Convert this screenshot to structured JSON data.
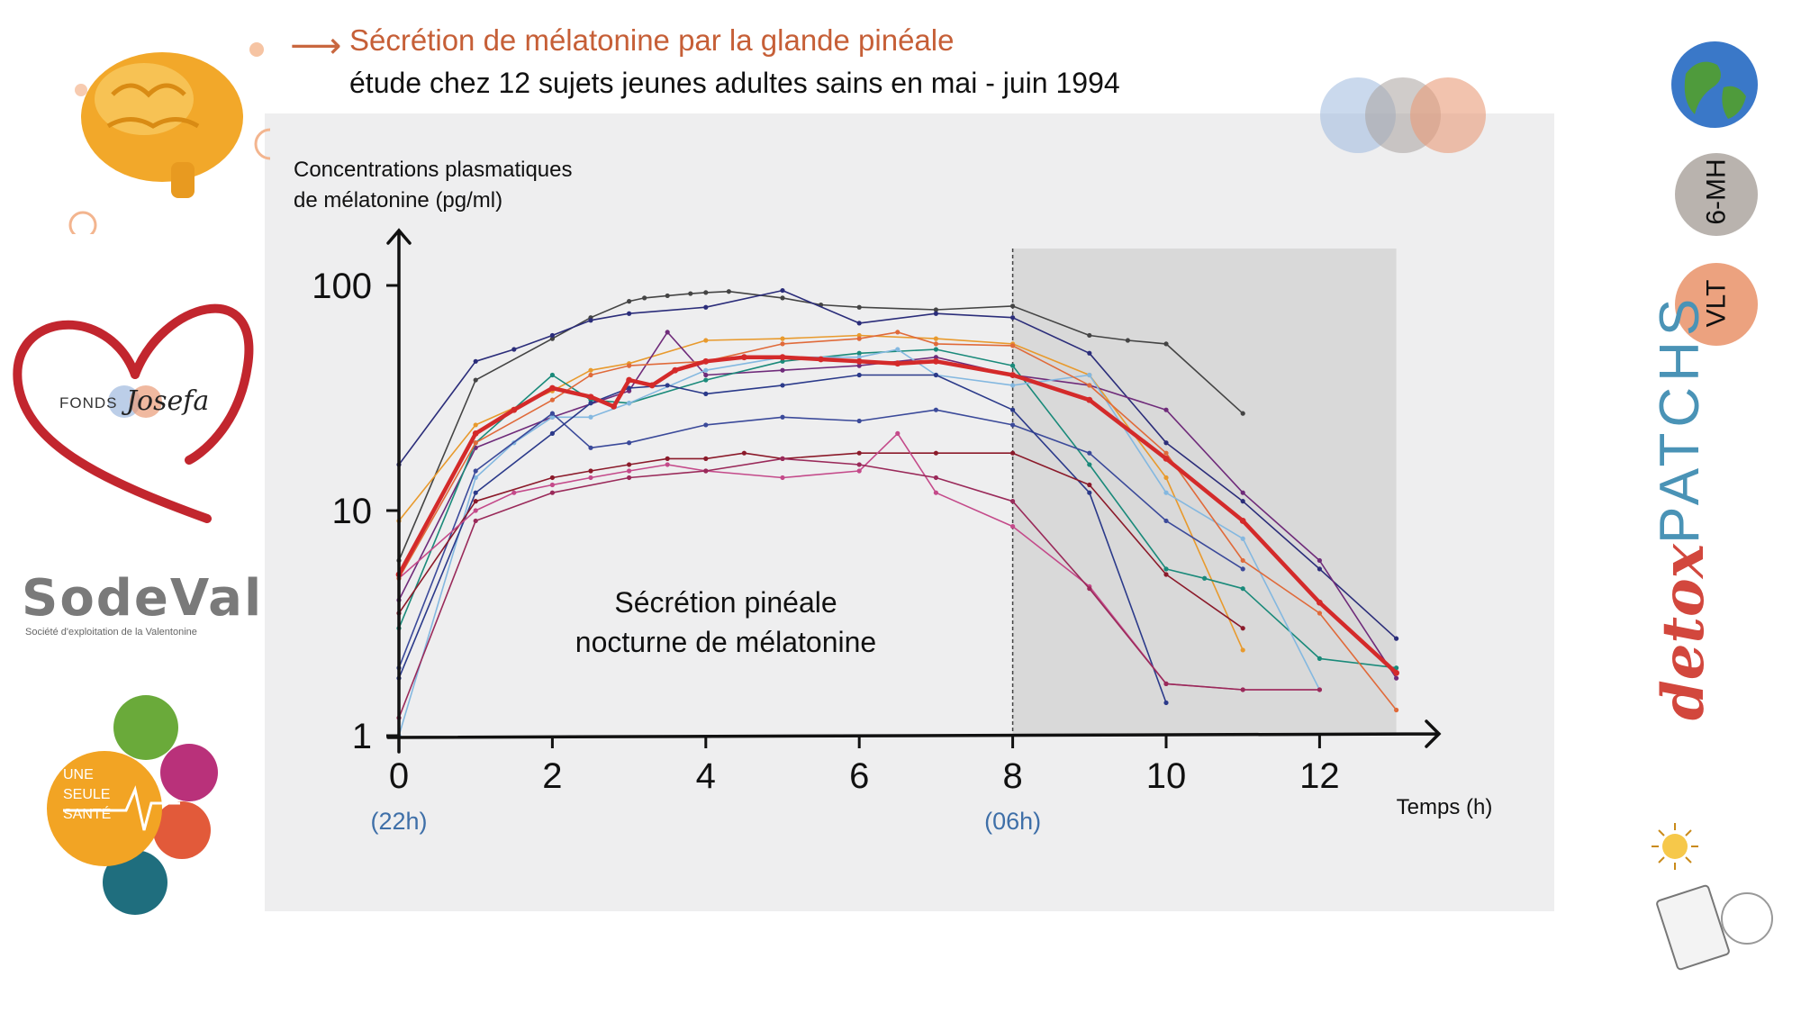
{
  "header": {
    "arrow": "⟶",
    "title": "Sécrétion de mélatonine par la glande pinéale",
    "subtitle": "étude chez 12 sujets jeunes adultes sains en mai - juin 1994"
  },
  "sidebar_left": {
    "fonds_label": "FONDS",
    "fonds_script": "Josefa",
    "sodeval_label": "SodeVal",
    "sodeval_sub": "Société d'exploitation de la Valentonine",
    "one_health": [
      "UNE",
      "SEULE",
      "SANTÉ"
    ]
  },
  "sidebar_right": {
    "badge_6mh": "6-MH",
    "badge_vlt": "VLT",
    "detox": "detox",
    "patchs": "PATCHS"
  },
  "colors": {
    "title": "#c65f37",
    "mean_line": "#d42a2a",
    "shade": "#d9d9d9",
    "hour_label": "#3e6fa8"
  },
  "chart_data": {
    "type": "line",
    "ylabel_lines": [
      "Concentrations plasmatiques",
      "de mélatonine (pg/ml)"
    ],
    "xlabel": "Temps (h)",
    "y_scale": "log",
    "ylim": [
      1,
      130
    ],
    "xlim": [
      0,
      13.5
    ],
    "x_ticks": [
      0,
      2,
      4,
      6,
      8,
      10,
      12
    ],
    "y_ticks": [
      1,
      10,
      100
    ],
    "hour_labels": [
      {
        "x": 0,
        "text": "(22h)"
      },
      {
        "x": 8,
        "text": "(06h)"
      }
    ],
    "shaded_region": [
      8,
      13
    ],
    "annotation_lines": [
      "Sécrétion pinéale",
      "nocturne de mélatonine"
    ],
    "series": [
      {
        "color": "#444444",
        "x": [
          0,
          1,
          2,
          2.5,
          3,
          3.2,
          3.5,
          3.8,
          4,
          4.3,
          5,
          5.5,
          6,
          7,
          8,
          9,
          9.5,
          10,
          11
        ],
        "y": [
          6,
          38,
          58,
          72,
          85,
          88,
          90,
          92,
          93,
          94,
          88,
          82,
          80,
          78,
          81,
          60,
          57,
          55,
          27
        ]
      },
      {
        "color": "#2b2d7a",
        "x": [
          0,
          1,
          1.5,
          2,
          2.5,
          3,
          4,
          5,
          6,
          7,
          8,
          9,
          10,
          11,
          12,
          13
        ],
        "y": [
          16,
          46,
          52,
          60,
          70,
          75,
          80,
          95,
          68,
          75,
          72,
          50,
          20,
          11,
          5.5,
          2.7
        ]
      },
      {
        "color": "#e89a2d",
        "x": [
          0,
          1,
          2,
          2.5,
          3,
          4,
          5,
          6,
          7,
          8,
          9,
          10,
          11
        ],
        "y": [
          9,
          24,
          34,
          42,
          45,
          57,
          58,
          60,
          58,
          55,
          40,
          14,
          2.4
        ]
      },
      {
        "color": "#6f2b7a",
        "x": [
          0,
          1,
          2,
          3,
          3.5,
          4,
          5,
          6,
          7,
          8,
          9,
          10,
          11,
          12,
          13
        ],
        "y": [
          4,
          19,
          26,
          34,
          62,
          40,
          42,
          44,
          48,
          40,
          36,
          28,
          12,
          6,
          1.8
        ]
      },
      {
        "color": "#1a8a7a",
        "x": [
          0,
          1,
          2,
          2.5,
          3,
          4,
          5,
          6,
          7,
          8,
          9,
          10,
          10.5,
          11,
          12,
          13
        ],
        "y": [
          3,
          20,
          40,
          31,
          30,
          38,
          46,
          50,
          52,
          44,
          16,
          5.5,
          5,
          4.5,
          2.2,
          2
        ]
      },
      {
        "color": "#84b8e0",
        "x": [
          0,
          1,
          1.5,
          2,
          2.5,
          3,
          4,
          5,
          6,
          6.5,
          7,
          8,
          9,
          10,
          11,
          12
        ],
        "y": [
          1,
          14,
          20,
          26,
          26,
          30,
          42,
          48,
          48,
          52,
          40,
          36,
          40,
          12,
          7.5,
          1.6
        ]
      },
      {
        "color": "#3b4a9a",
        "x": [
          0,
          1,
          2,
          2.5,
          3,
          4,
          5,
          6,
          7,
          8,
          9,
          10,
          11
        ],
        "y": [
          2,
          15,
          27,
          19,
          20,
          24,
          26,
          25,
          28,
          24,
          18,
          9,
          5.5
        ]
      },
      {
        "color": "#2b3a8a",
        "x": [
          0,
          1,
          2,
          2.5,
          3,
          3.5,
          4,
          5,
          6,
          7,
          8,
          9,
          10
        ],
        "y": [
          1.8,
          12,
          22,
          30,
          35,
          36,
          33,
          36,
          40,
          40,
          28,
          12,
          1.4
        ]
      },
      {
        "color": "#8b1a2a",
        "x": [
          0,
          1,
          2,
          2.5,
          3,
          3.5,
          4,
          4.5,
          5,
          6,
          7,
          8,
          9,
          10,
          11
        ],
        "y": [
          3.5,
          11,
          14,
          15,
          16,
          17,
          17,
          18,
          17,
          18,
          18,
          18,
          13,
          5.2,
          3
        ]
      },
      {
        "color": "#c44a8a",
        "x": [
          0,
          1,
          1.5,
          2,
          2.5,
          3,
          3.5,
          4,
          5,
          6,
          6.5,
          7,
          8,
          9,
          10,
          11,
          12
        ],
        "y": [
          5,
          10,
          12,
          13,
          14,
          15,
          16,
          15,
          14,
          15,
          22,
          12,
          8.5,
          4.6,
          1.7,
          1.6,
          1.6
        ]
      },
      {
        "color": "#9a2a5a",
        "x": [
          0,
          1,
          2,
          3,
          4,
          5,
          6,
          7,
          8,
          9,
          10,
          11,
          12
        ],
        "y": [
          1.2,
          9,
          12,
          14,
          15,
          17,
          16,
          14,
          11,
          4.5,
          1.7,
          1.6,
          1.6
        ]
      },
      {
        "color": "#e06a3a",
        "x": [
          0,
          1,
          2,
          2.5,
          3,
          4,
          5,
          6,
          6.5,
          7,
          8,
          9,
          10,
          11,
          12,
          13
        ],
        "y": [
          5,
          20,
          31,
          40,
          44,
          46,
          55,
          58,
          62,
          55,
          54,
          36,
          18,
          6,
          3.5,
          1.3
        ]
      },
      {
        "color": "#d42a2a",
        "width": 4.5,
        "name": "",
        "x": [
          0,
          1,
          1.5,
          2,
          2.5,
          2.8,
          3,
          3.3,
          3.6,
          4,
          4.5,
          5,
          5.5,
          6,
          6.5,
          7,
          8,
          9,
          10,
          11,
          12,
          13
        ],
        "y": [
          5.2,
          22,
          28,
          35,
          32,
          29,
          38,
          36,
          42,
          46,
          48,
          48,
          47,
          46,
          45,
          46,
          40,
          31,
          17,
          9,
          3.9,
          1.9
        ]
      }
    ]
  }
}
